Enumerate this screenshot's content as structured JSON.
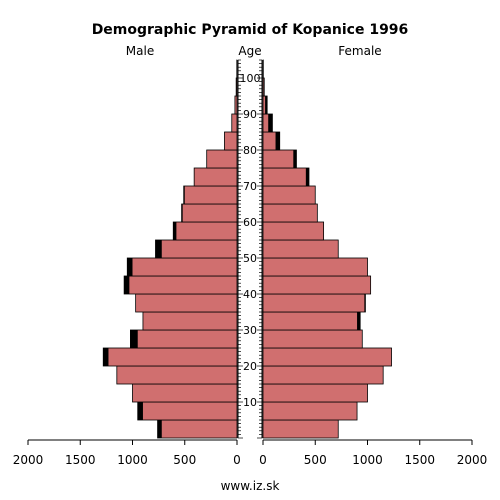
{
  "chart_data": {
    "type": "bar",
    "title": "Demographic Pyramid of Kopanice 1996",
    "left_label": "Male",
    "center_label": "Age",
    "right_label": "Female",
    "footer": "www.iz.sk",
    "x_ticks": [
      "2000",
      "1500",
      "1000",
      "500",
      "0",
      "0",
      "500",
      "1000",
      "1500",
      "2000"
    ],
    "x_tick_values": [
      2000,
      1500,
      1000,
      500,
      0,
      0,
      500,
      1000,
      1500,
      2000
    ],
    "age_ticks": [
      10,
      20,
      30,
      40,
      50,
      60,
      70,
      80,
      90,
      100
    ],
    "xlim": [
      0,
      2000
    ],
    "age_range": [
      0,
      105
    ],
    "colors": {
      "male_fill": "#d06f6f",
      "female_fill": "#d06f6f",
      "bar_outline": "#000000",
      "excess_fill": "#000000"
    },
    "age_groups": [
      "0-4",
      "5-9",
      "10-14",
      "15-19",
      "20-24",
      "25-29",
      "30-34",
      "35-39",
      "40-44",
      "45-49",
      "50-54",
      "55-59",
      "60-64",
      "65-69",
      "70-74",
      "75-79",
      "80-84",
      "85-89",
      "90-94",
      "95-99",
      "100-104"
    ],
    "male": [
      760,
      950,
      1000,
      1150,
      1280,
      1020,
      900,
      970,
      1080,
      1050,
      780,
      610,
      530,
      510,
      410,
      290,
      120,
      50,
      20,
      8,
      2
    ],
    "female": [
      720,
      900,
      1000,
      1150,
      1230,
      950,
      930,
      980,
      1030,
      1000,
      720,
      580,
      520,
      500,
      440,
      320,
      160,
      90,
      40,
      12,
      3
    ]
  }
}
